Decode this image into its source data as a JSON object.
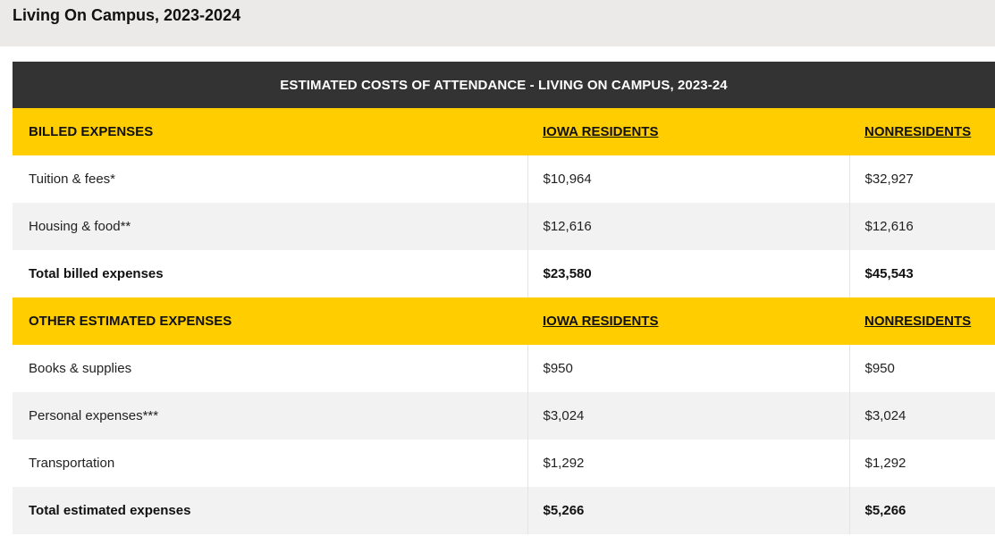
{
  "page": {
    "title": "Living On Campus, 2023-2024"
  },
  "table": {
    "caption": "ESTIMATED COSTS OF ATTENDANCE - LIVING ON CAMPUS, 2023-24",
    "billed": {
      "heading": "BILLED EXPENSES",
      "col_iowa": "IOWA RESIDENTS",
      "col_non": "NONRESIDENTS",
      "rows": [
        {
          "label": "Tuition & fees*",
          "iowa": "$10,964",
          "non": "$32,927"
        },
        {
          "label": "Housing & food**",
          "iowa": "$12,616",
          "non": "$12,616"
        }
      ],
      "total": {
        "label": "Total billed expenses",
        "iowa": "$23,580",
        "non": "$45,543"
      }
    },
    "other": {
      "heading": "OTHER ESTIMATED EXPENSES",
      "col_iowa": "IOWA RESIDENTS",
      "col_non": "NONRESIDENTS",
      "rows": [
        {
          "label": "Books & supplies",
          "iowa": "$950",
          "non": "$950"
        },
        {
          "label": "Personal expenses***",
          "iowa": "$3,024",
          "non": "$3,024"
        },
        {
          "label": "Transportation",
          "iowa": "$1,292",
          "non": "$1,292"
        }
      ],
      "total": {
        "label": "Total estimated expenses",
        "iowa": "$5,266",
        "non": "$5,266"
      }
    }
  },
  "colors": {
    "header_dark": "#333333",
    "section_gold": "#ffcd00",
    "page_band": "#eceae9",
    "stripe": "#f2f2f2"
  }
}
